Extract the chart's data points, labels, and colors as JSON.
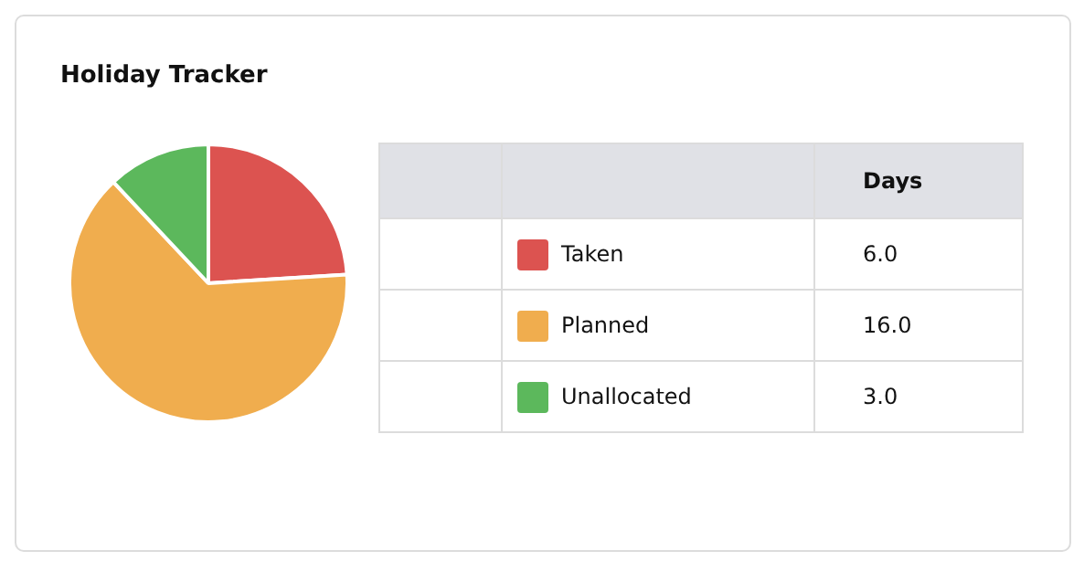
{
  "chart_data": {
    "type": "pie",
    "title": "Holiday Tracker",
    "categories": [
      "Taken",
      "Planned",
      "Unallocated"
    ],
    "values": [
      6,
      16,
      3
    ],
    "value_labels": [
      "6.0",
      "16.0",
      "3.0"
    ],
    "colors": [
      "#dc5350",
      "#f0ad4e",
      "#5cb85c"
    ],
    "legend_title": "Days",
    "legend": "right"
  }
}
